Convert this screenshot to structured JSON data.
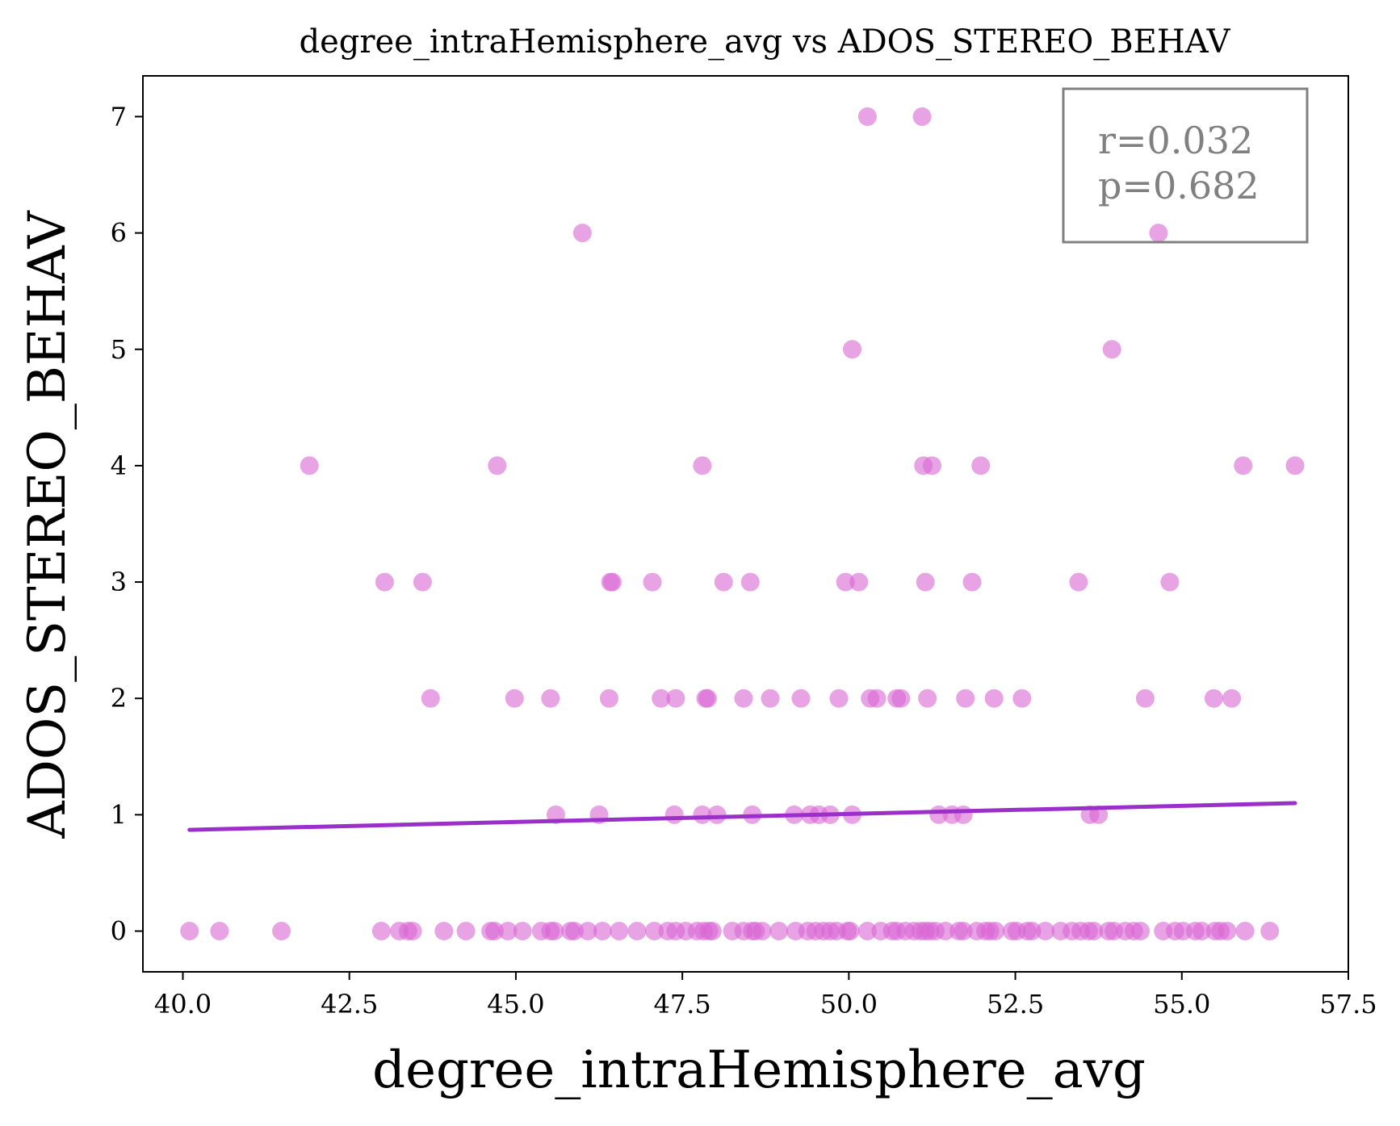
{
  "chart_data": {
    "type": "scatter",
    "title": "degree_intraHemisphere_avg vs ADOS_STEREO_BEHAV",
    "xlabel": "degree_intraHemisphere_avg",
    "ylabel": "ADOS_STEREO_BEHAV",
    "xlim": [
      39.4,
      57.5
    ],
    "ylim": [
      -0.35,
      7.35
    ],
    "xticks": [
      "40.0",
      "42.5",
      "45.0",
      "47.5",
      "50.0",
      "52.5",
      "55.0",
      "57.5"
    ],
    "xtick_values": [
      40.0,
      42.5,
      45.0,
      47.5,
      50.0,
      52.5,
      55.0,
      57.5
    ],
    "yticks": [
      "0",
      "1",
      "2",
      "3",
      "4",
      "5",
      "6",
      "7"
    ],
    "ytick_values": [
      0,
      1,
      2,
      3,
      4,
      5,
      6,
      7
    ],
    "grid": false,
    "point_color": "#d866d4",
    "line_color": "#9b2fc9",
    "regression_line": {
      "x": [
        40.1,
        56.7
      ],
      "y": [
        0.87,
        1.1
      ]
    },
    "annotation": {
      "lines": [
        "r=0.032",
        "p=0.682"
      ],
      "position": "top-right"
    },
    "points": [
      {
        "x": 50.28,
        "y": 7
      },
      {
        "x": 51.1,
        "y": 7
      },
      {
        "x": 46.0,
        "y": 6
      },
      {
        "x": 54.65,
        "y": 6
      },
      {
        "x": 50.05,
        "y": 5
      },
      {
        "x": 53.95,
        "y": 5
      },
      {
        "x": 41.9,
        "y": 4
      },
      {
        "x": 44.72,
        "y": 4
      },
      {
        "x": 47.8,
        "y": 4
      },
      {
        "x": 51.12,
        "y": 4
      },
      {
        "x": 51.25,
        "y": 4
      },
      {
        "x": 51.98,
        "y": 4
      },
      {
        "x": 55.92,
        "y": 4
      },
      {
        "x": 56.7,
        "y": 4
      },
      {
        "x": 43.03,
        "y": 3
      },
      {
        "x": 43.6,
        "y": 3
      },
      {
        "x": 46.42,
        "y": 3
      },
      {
        "x": 46.45,
        "y": 3
      },
      {
        "x": 47.05,
        "y": 3
      },
      {
        "x": 48.12,
        "y": 3
      },
      {
        "x": 48.52,
        "y": 3
      },
      {
        "x": 49.95,
        "y": 3
      },
      {
        "x": 50.15,
        "y": 3
      },
      {
        "x": 51.15,
        "y": 3
      },
      {
        "x": 51.85,
        "y": 3
      },
      {
        "x": 53.45,
        "y": 3
      },
      {
        "x": 54.82,
        "y": 3
      },
      {
        "x": 43.72,
        "y": 2
      },
      {
        "x": 44.98,
        "y": 2
      },
      {
        "x": 45.52,
        "y": 2
      },
      {
        "x": 46.4,
        "y": 2
      },
      {
        "x": 47.18,
        "y": 2
      },
      {
        "x": 47.4,
        "y": 2
      },
      {
        "x": 47.85,
        "y": 2
      },
      {
        "x": 47.88,
        "y": 2
      },
      {
        "x": 48.42,
        "y": 2
      },
      {
        "x": 48.82,
        "y": 2
      },
      {
        "x": 49.28,
        "y": 2
      },
      {
        "x": 49.85,
        "y": 2
      },
      {
        "x": 50.32,
        "y": 2
      },
      {
        "x": 50.42,
        "y": 2
      },
      {
        "x": 50.72,
        "y": 2
      },
      {
        "x": 50.78,
        "y": 2
      },
      {
        "x": 51.18,
        "y": 2
      },
      {
        "x": 51.75,
        "y": 2
      },
      {
        "x": 52.18,
        "y": 2
      },
      {
        "x": 52.6,
        "y": 2
      },
      {
        "x": 54.45,
        "y": 2
      },
      {
        "x": 55.48,
        "y": 2
      },
      {
        "x": 55.75,
        "y": 2
      },
      {
        "x": 45.6,
        "y": 1
      },
      {
        "x": 46.25,
        "y": 1
      },
      {
        "x": 47.38,
        "y": 1
      },
      {
        "x": 47.8,
        "y": 1
      },
      {
        "x": 48.02,
        "y": 1
      },
      {
        "x": 48.55,
        "y": 1
      },
      {
        "x": 49.18,
        "y": 1
      },
      {
        "x": 49.42,
        "y": 1
      },
      {
        "x": 49.55,
        "y": 1
      },
      {
        "x": 49.72,
        "y": 1
      },
      {
        "x": 50.05,
        "y": 1
      },
      {
        "x": 51.35,
        "y": 1
      },
      {
        "x": 51.55,
        "y": 1
      },
      {
        "x": 51.72,
        "y": 1
      },
      {
        "x": 53.62,
        "y": 1
      },
      {
        "x": 53.75,
        "y": 1
      },
      {
        "x": 40.1,
        "y": 0
      },
      {
        "x": 40.55,
        "y": 0
      },
      {
        "x": 41.48,
        "y": 0
      },
      {
        "x": 42.98,
        "y": 0
      },
      {
        "x": 43.25,
        "y": 0
      },
      {
        "x": 43.38,
        "y": 0
      },
      {
        "x": 43.45,
        "y": 0
      },
      {
        "x": 43.92,
        "y": 0
      },
      {
        "x": 44.25,
        "y": 0
      },
      {
        "x": 44.62,
        "y": 0
      },
      {
        "x": 44.68,
        "y": 0
      },
      {
        "x": 44.88,
        "y": 0
      },
      {
        "x": 45.1,
        "y": 0
      },
      {
        "x": 45.38,
        "y": 0
      },
      {
        "x": 45.52,
        "y": 0
      },
      {
        "x": 45.58,
        "y": 0
      },
      {
        "x": 45.82,
        "y": 0
      },
      {
        "x": 45.88,
        "y": 0
      },
      {
        "x": 46.08,
        "y": 0
      },
      {
        "x": 46.3,
        "y": 0
      },
      {
        "x": 46.55,
        "y": 0
      },
      {
        "x": 46.82,
        "y": 0
      },
      {
        "x": 47.08,
        "y": 0
      },
      {
        "x": 47.28,
        "y": 0
      },
      {
        "x": 47.4,
        "y": 0
      },
      {
        "x": 47.55,
        "y": 0
      },
      {
        "x": 47.72,
        "y": 0
      },
      {
        "x": 47.82,
        "y": 0
      },
      {
        "x": 47.9,
        "y": 0
      },
      {
        "x": 47.95,
        "y": 0
      },
      {
        "x": 48.25,
        "y": 0
      },
      {
        "x": 48.42,
        "y": 0
      },
      {
        "x": 48.55,
        "y": 0
      },
      {
        "x": 48.6,
        "y": 0
      },
      {
        "x": 48.7,
        "y": 0
      },
      {
        "x": 48.95,
        "y": 0
      },
      {
        "x": 49.2,
        "y": 0
      },
      {
        "x": 49.38,
        "y": 0
      },
      {
        "x": 49.5,
        "y": 0
      },
      {
        "x": 49.62,
        "y": 0
      },
      {
        "x": 49.72,
        "y": 0
      },
      {
        "x": 49.82,
        "y": 0
      },
      {
        "x": 49.98,
        "y": 0
      },
      {
        "x": 50.02,
        "y": 0
      },
      {
        "x": 50.28,
        "y": 0
      },
      {
        "x": 50.48,
        "y": 0
      },
      {
        "x": 50.65,
        "y": 0
      },
      {
        "x": 50.72,
        "y": 0
      },
      {
        "x": 50.85,
        "y": 0
      },
      {
        "x": 50.98,
        "y": 0
      },
      {
        "x": 51.08,
        "y": 0
      },
      {
        "x": 51.15,
        "y": 0
      },
      {
        "x": 51.22,
        "y": 0
      },
      {
        "x": 51.3,
        "y": 0
      },
      {
        "x": 51.45,
        "y": 0
      },
      {
        "x": 51.65,
        "y": 0
      },
      {
        "x": 51.72,
        "y": 0
      },
      {
        "x": 51.92,
        "y": 0
      },
      {
        "x": 52.05,
        "y": 0
      },
      {
        "x": 52.12,
        "y": 0
      },
      {
        "x": 52.2,
        "y": 0
      },
      {
        "x": 52.45,
        "y": 0
      },
      {
        "x": 52.52,
        "y": 0
      },
      {
        "x": 52.68,
        "y": 0
      },
      {
        "x": 52.75,
        "y": 0
      },
      {
        "x": 52.95,
        "y": 0
      },
      {
        "x": 53.18,
        "y": 0
      },
      {
        "x": 53.35,
        "y": 0
      },
      {
        "x": 53.48,
        "y": 0
      },
      {
        "x": 53.6,
        "y": 0
      },
      {
        "x": 53.68,
        "y": 0
      },
      {
        "x": 53.9,
        "y": 0
      },
      {
        "x": 53.98,
        "y": 0
      },
      {
        "x": 54.15,
        "y": 0
      },
      {
        "x": 54.28,
        "y": 0
      },
      {
        "x": 54.38,
        "y": 0
      },
      {
        "x": 54.72,
        "y": 0
      },
      {
        "x": 54.9,
        "y": 0
      },
      {
        "x": 55.02,
        "y": 0
      },
      {
        "x": 55.2,
        "y": 0
      },
      {
        "x": 55.3,
        "y": 0
      },
      {
        "x": 55.5,
        "y": 0
      },
      {
        "x": 55.58,
        "y": 0
      },
      {
        "x": 55.68,
        "y": 0
      },
      {
        "x": 55.95,
        "y": 0
      },
      {
        "x": 56.32,
        "y": 0
      }
    ]
  }
}
